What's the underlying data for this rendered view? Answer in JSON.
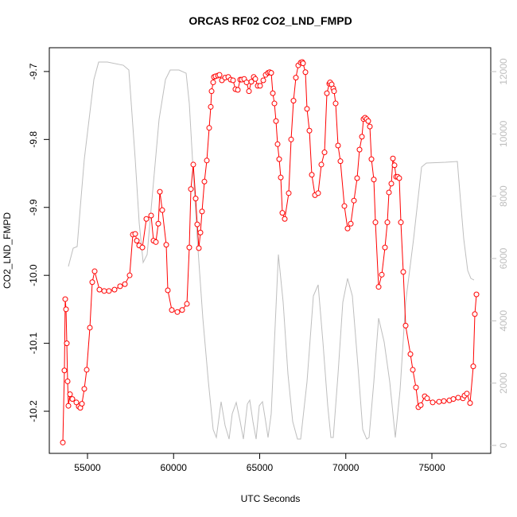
{
  "chart_data": {
    "type": "line",
    "title": "ORCAS RF02 CO2_LND_FMPD",
    "xlabel": "UTC Seconds",
    "ylabel": "CO2_LND_FMPD",
    "xlim": [
      52783,
      78418
    ],
    "ylim": [
      -10.262,
      -9.665
    ],
    "y2lim": [
      -255,
      12766
    ],
    "xticks": [
      55000,
      60000,
      65000,
      70000,
      75000
    ],
    "yticks": [
      -10.2,
      -10.1,
      {
        "value": -10,
        "label": "-10.0"
      },
      -9.9,
      -9.8,
      -9.7
    ],
    "y2ticks": [
      0,
      2000,
      4000,
      6000,
      8000,
      10000,
      12000
    ],
    "y2color": "#bebebe",
    "series": [
      {
        "color": "#bebebe",
        "axis": "y2",
        "markers": false,
        "x": [
          53891,
          54169,
          54400,
          54584,
          54815,
          55092,
          55370,
          55647,
          56155,
          57079,
          57402,
          57541,
          57771,
          58002,
          58233,
          58464,
          58788,
          59157,
          59527,
          59804,
          60312,
          60728,
          60912,
          61097,
          61374,
          61698,
          62021,
          62298,
          62483,
          62760,
          62991,
          63222,
          63407,
          63638,
          63868,
          64053,
          64284,
          64423,
          64608,
          64792,
          64977,
          65162,
          65347,
          65485,
          65670,
          65855,
          66086,
          66363,
          66640,
          66917,
          67194,
          67379,
          67748,
          68118,
          68395,
          68672,
          68950,
          69134,
          69273,
          69550,
          69827,
          70104,
          70381,
          70705,
          70982,
          71213,
          71351,
          71628,
          71906,
          72229,
          72552,
          72876,
          73153,
          73476,
          73938,
          74400,
          74677,
          75786,
          76479,
          76617,
          76848,
          77079,
          77264,
          77448
        ],
        "values": [
          5744,
          6331,
          6383,
          7659,
          9191,
          10467,
          11744,
          12305,
          12305,
          12203,
          12050,
          10978,
          9191,
          7148,
          5872,
          6127,
          8170,
          10467,
          11744,
          12050,
          12050,
          11948,
          10978,
          9191,
          6638,
          4085,
          2042,
          511,
          255,
          1404,
          638,
          204,
          1021,
          1379,
          766,
          204,
          1328,
          1455,
          766,
          204,
          1277,
          1404,
          766,
          255,
          1021,
          3319,
          6127,
          4595,
          2298,
          766,
          204,
          204,
          2042,
          4800,
          5157,
          3319,
          1277,
          255,
          255,
          2298,
          4595,
          5361,
          4800,
          2553,
          511,
          204,
          255,
          2042,
          4085,
          3319,
          2042,
          255,
          1787,
          4595,
          6638,
          8936,
          9063,
          9089,
          9114,
          8170,
          6638,
          5617,
          5361,
          5310
        ]
      },
      {
        "color": "#ff0000",
        "axis": "y",
        "markers": true,
        "x": [
          53568,
          53660,
          53707,
          53753,
          53799,
          53845,
          53891,
          53984,
          54122,
          54353,
          54492,
          54584,
          54677,
          54815,
          54954,
          55139,
          55277,
          55416,
          55693,
          55970,
          56247,
          56570,
          56894,
          57171,
          57448,
          57633,
          57771,
          57864,
          58002,
          58187,
          58418,
          58695,
          58834,
          58972,
          59111,
          59203,
          59342,
          59573,
          59665,
          59896,
          60219,
          60497,
          60774,
          60912,
          61005,
          61143,
          61282,
          61374,
          61467,
          61559,
          61651,
          61790,
          61929,
          62067,
          62159,
          62206,
          62298,
          62344,
          62437,
          62575,
          62668,
          62806,
          62991,
          63176,
          63314,
          63453,
          63591,
          63730,
          63868,
          63961,
          64099,
          64238,
          64377,
          64515,
          64654,
          64746,
          64885,
          65023,
          65208,
          65347,
          65485,
          65578,
          65670,
          65762,
          65855,
          65947,
          66039,
          66132,
          66224,
          66317,
          66455,
          66686,
          66825,
          66963,
          67102,
          67240,
          67379,
          67471,
          67517,
          67656,
          67748,
          67887,
          68026,
          68210,
          68395,
          68580,
          68765,
          68903,
          69042,
          69088,
          69180,
          69273,
          69319,
          69411,
          69550,
          69688,
          69919,
          70104,
          70289,
          70474,
          70658,
          70797,
          70936,
          71028,
          71120,
          71213,
          71305,
          71397,
          71490,
          71628,
          71721,
          71906,
          72090,
          72275,
          72414,
          72506,
          72645,
          72737,
          72829,
          72922,
          73014,
          73106,
          73199,
          73337,
          73476,
          73753,
          73892,
          74076,
          74215,
          74354,
          74585,
          74723,
          75046,
          75416,
          75693,
          76016,
          76247,
          76525,
          76802,
          76894,
          77033,
          77217,
          77402,
          77494,
          77587
        ],
        "values": [
          -10.246,
          -10.14,
          -10.035,
          -10.05,
          -10.1,
          -10.156,
          -10.192,
          -10.175,
          -10.182,
          -10.187,
          -10.193,
          -10.195,
          -10.189,
          -10.167,
          -10.139,
          -10.077,
          -10.01,
          -9.994,
          -10.021,
          -10.023,
          -10.023,
          -10.021,
          -10.016,
          -10.013,
          -10.0,
          -9.94,
          -9.939,
          -9.949,
          -9.956,
          -9.959,
          -9.917,
          -9.912,
          -9.949,
          -9.951,
          -9.924,
          -9.877,
          -9.904,
          -9.955,
          -10.022,
          -10.051,
          -10.054,
          -10.051,
          -10.042,
          -9.959,
          -9.873,
          -9.837,
          -9.887,
          -9.925,
          -9.96,
          -9.937,
          -9.906,
          -9.862,
          -9.831,
          -9.783,
          -9.752,
          -9.729,
          -9.716,
          -9.708,
          -9.707,
          -9.706,
          -9.705,
          -9.713,
          -9.709,
          -9.708,
          -9.712,
          -9.713,
          -9.726,
          -9.727,
          -9.712,
          -9.712,
          -9.711,
          -9.716,
          -9.729,
          -9.715,
          -9.708,
          -9.711,
          -9.721,
          -9.721,
          -9.713,
          -9.705,
          -9.702,
          -9.701,
          -9.702,
          -9.732,
          -9.747,
          -9.773,
          -9.807,
          -9.829,
          -9.856,
          -9.908,
          -9.917,
          -9.879,
          -9.8,
          -9.743,
          -9.709,
          -9.691,
          -9.687,
          -9.686,
          -9.688,
          -9.701,
          -9.755,
          -9.787,
          -9.852,
          -9.882,
          -9.879,
          -9.837,
          -9.819,
          -9.732,
          -9.718,
          -9.716,
          -9.719,
          -9.725,
          -9.729,
          -9.747,
          -9.809,
          -9.832,
          -9.898,
          -9.931,
          -9.924,
          -9.89,
          -9.857,
          -9.815,
          -9.796,
          -9.77,
          -9.768,
          -9.77,
          -9.773,
          -9.781,
          -9.829,
          -9.859,
          -9.922,
          -10.017,
          -9.999,
          -9.959,
          -9.922,
          -9.878,
          -9.865,
          -9.828,
          -9.838,
          -9.855,
          -9.855,
          -9.857,
          -9.922,
          -9.995,
          -10.074,
          -10.116,
          -10.139,
          -10.165,
          -10.194,
          -10.191,
          -10.178,
          -10.181,
          -10.187,
          -10.186,
          -10.185,
          -10.184,
          -10.182,
          -10.18,
          -10.181,
          -10.177,
          -10.174,
          -10.188,
          -10.134,
          -10.057,
          -10.028
        ]
      }
    ]
  }
}
